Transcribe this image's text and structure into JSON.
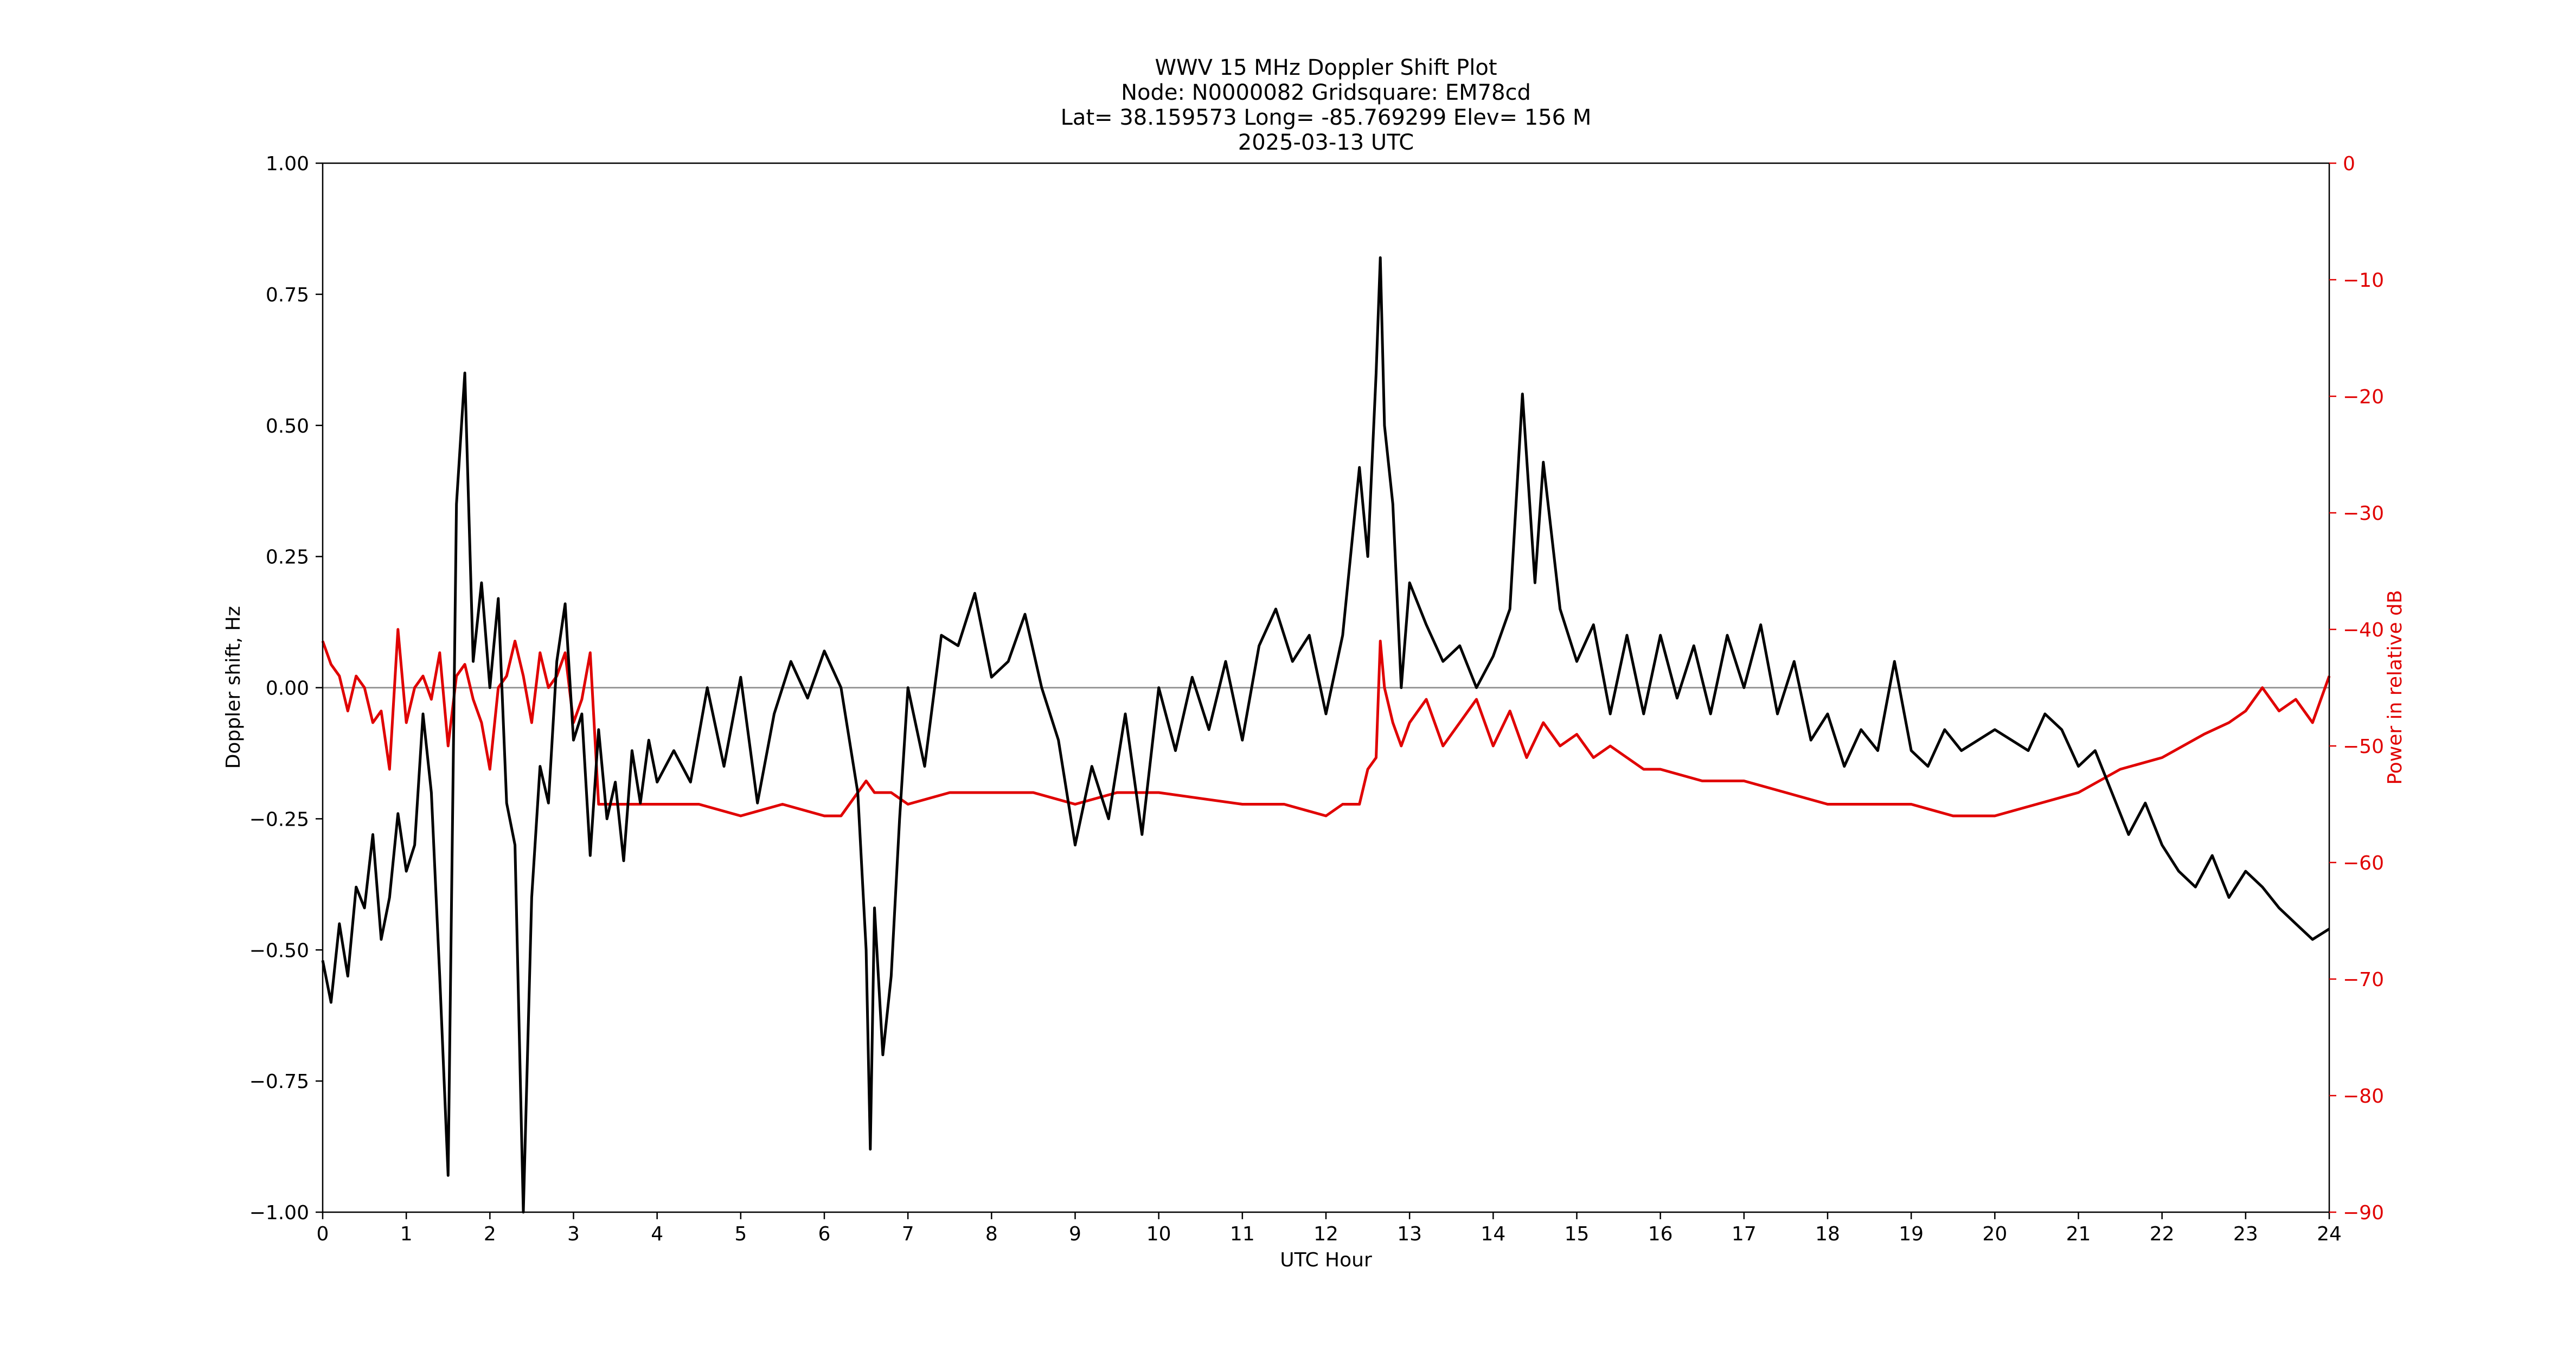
{
  "chart_data": {
    "type": "line",
    "title_lines": [
      "WWV 15 MHz Doppler Shift Plot",
      "Node:  N0000082     Gridsquare:  EM78cd",
      "Lat= 38.159573    Long= -85.769299    Elev= 156 M",
      "2025-03-13  UTC"
    ],
    "xlabel": "UTC Hour",
    "ylabel_left": "Doppler shift, Hz",
    "ylabel_right": "Power in relative dB",
    "xlim": [
      0,
      24
    ],
    "ylim_left": [
      -1.0,
      1.0
    ],
    "ylim_right": [
      -90,
      0
    ],
    "x_ticks": [
      "0",
      "1",
      "2",
      "3",
      "4",
      "5",
      "6",
      "7",
      "8",
      "9",
      "10",
      "11",
      "12",
      "13",
      "14",
      "15",
      "16",
      "17",
      "18",
      "19",
      "20",
      "21",
      "22",
      "23",
      "24"
    ],
    "y_left_ticks": [
      "1.00",
      "0.75",
      "0.50",
      "0.25",
      "0.00",
      "−0.25",
      "−0.50",
      "−0.75",
      "−1.00"
    ],
    "y_right_ticks": [
      "0",
      "−10",
      "−20",
      "−30",
      "−40",
      "−50",
      "−60",
      "−70",
      "−80",
      "−90"
    ],
    "zero_line": 0.0,
    "colors": {
      "doppler": "#000000",
      "power": "#e00000",
      "zero_line": "#999999",
      "axes": "#000000"
    },
    "series": [
      {
        "axis": "left",
        "color": "#000000",
        "x": [
          0,
          0.1,
          0.2,
          0.3,
          0.4,
          0.5,
          0.6,
          0.7,
          0.8,
          0.9,
          1.0,
          1.1,
          1.2,
          1.3,
          1.4,
          1.5,
          1.6,
          1.7,
          1.8,
          1.9,
          2.0,
          2.1,
          2.2,
          2.3,
          2.4,
          2.5,
          2.6,
          2.7,
          2.8,
          2.9,
          3.0,
          3.1,
          3.2,
          3.3,
          3.4,
          3.5,
          3.6,
          3.7,
          3.8,
          3.9,
          4.0,
          4.2,
          4.4,
          4.6,
          4.8,
          5.0,
          5.2,
          5.4,
          5.6,
          5.8,
          6.0,
          6.2,
          6.4,
          6.5,
          6.55,
          6.6,
          6.7,
          6.8,
          6.9,
          7.0,
          7.2,
          7.4,
          7.6,
          7.8,
          8.0,
          8.2,
          8.4,
          8.6,
          8.8,
          9.0,
          9.2,
          9.4,
          9.6,
          9.8,
          10.0,
          10.2,
          10.4,
          10.6,
          10.8,
          11.0,
          11.2,
          11.4,
          11.6,
          11.8,
          12.0,
          12.2,
          12.4,
          12.5,
          12.6,
          12.65,
          12.7,
          12.8,
          12.9,
          13.0,
          13.2,
          13.4,
          13.6,
          13.8,
          14.0,
          14.2,
          14.35,
          14.5,
          14.6,
          14.8,
          15.0,
          15.2,
          15.4,
          15.6,
          15.8,
          16.0,
          16.2,
          16.4,
          16.6,
          16.8,
          17.0,
          17.2,
          17.4,
          17.6,
          17.8,
          18.0,
          18.2,
          18.4,
          18.6,
          18.8,
          19.0,
          19.2,
          19.4,
          19.6,
          19.8,
          20.0,
          20.2,
          20.4,
          20.6,
          20.8,
          21.0,
          21.2,
          21.4,
          21.6,
          21.8,
          22.0,
          22.2,
          22.4,
          22.6,
          22.8,
          23.0,
          23.2,
          23.4,
          23.6,
          23.8,
          24.0
        ],
        "values": [
          -0.52,
          -0.6,
          -0.45,
          -0.55,
          -0.38,
          -0.42,
          -0.28,
          -0.48,
          -0.4,
          -0.24,
          -0.35,
          -0.3,
          -0.05,
          -0.2,
          -0.55,
          -0.93,
          0.35,
          0.6,
          0.05,
          0.2,
          0.0,
          0.17,
          -0.22,
          -0.3,
          -1.0,
          -0.4,
          -0.15,
          -0.22,
          0.05,
          0.16,
          -0.1,
          -0.05,
          -0.32,
          -0.08,
          -0.25,
          -0.18,
          -0.33,
          -0.12,
          -0.22,
          -0.1,
          -0.18,
          -0.12,
          -0.18,
          0.0,
          -0.15,
          0.02,
          -0.22,
          -0.05,
          0.05,
          -0.02,
          0.07,
          0.0,
          -0.2,
          -0.5,
          -0.88,
          -0.42,
          -0.7,
          -0.55,
          -0.25,
          0.0,
          -0.15,
          0.1,
          0.08,
          0.18,
          0.02,
          0.05,
          0.14,
          0.0,
          -0.1,
          -0.3,
          -0.15,
          -0.25,
          -0.05,
          -0.28,
          0.0,
          -0.12,
          0.02,
          -0.08,
          0.05,
          -0.1,
          0.08,
          0.15,
          0.05,
          0.1,
          -0.05,
          0.1,
          0.42,
          0.25,
          0.6,
          0.82,
          0.5,
          0.35,
          0.0,
          0.2,
          0.12,
          0.05,
          0.08,
          0.0,
          0.06,
          0.15,
          0.56,
          0.2,
          0.43,
          0.15,
          0.05,
          0.12,
          -0.05,
          0.1,
          -0.05,
          0.1,
          -0.02,
          0.08,
          -0.05,
          0.1,
          0.0,
          0.12,
          -0.05,
          0.05,
          -0.1,
          -0.05,
          -0.15,
          -0.08,
          -0.12,
          0.05,
          -0.12,
          -0.15,
          -0.08,
          -0.12,
          -0.1,
          -0.08,
          -0.1,
          -0.12,
          -0.05,
          -0.08,
          -0.15,
          -0.12,
          -0.2,
          -0.28,
          -0.22,
          -0.3,
          -0.35,
          -0.38,
          -0.32,
          -0.4,
          -0.35,
          -0.38,
          -0.42,
          -0.45,
          -0.48,
          -0.46
        ]
      },
      {
        "axis": "right",
        "color": "#e00000",
        "x": [
          0,
          0.1,
          0.2,
          0.3,
          0.4,
          0.5,
          0.6,
          0.7,
          0.8,
          0.9,
          1.0,
          1.1,
          1.2,
          1.3,
          1.4,
          1.5,
          1.6,
          1.7,
          1.8,
          1.9,
          2.0,
          2.1,
          2.2,
          2.3,
          2.4,
          2.5,
          2.6,
          2.7,
          2.8,
          2.9,
          3.0,
          3.1,
          3.2,
          3.3,
          3.5,
          4.0,
          4.5,
          5.0,
          5.5,
          6.0,
          6.2,
          6.4,
          6.5,
          6.6,
          6.8,
          7.0,
          7.5,
          8.0,
          8.5,
          9.0,
          9.5,
          10.0,
          10.5,
          11.0,
          11.5,
          12.0,
          12.2,
          12.4,
          12.5,
          12.6,
          12.65,
          12.7,
          12.8,
          12.9,
          13.0,
          13.2,
          13.4,
          13.6,
          13.8,
          14.0,
          14.2,
          14.4,
          14.6,
          14.8,
          15.0,
          15.2,
          15.4,
          15.6,
          15.8,
          16.0,
          16.5,
          17.0,
          17.5,
          18.0,
          18.5,
          19.0,
          19.5,
          20.0,
          20.5,
          21.0,
          21.5,
          22.0,
          22.5,
          22.8,
          23.0,
          23.2,
          23.4,
          23.6,
          23.8,
          24.0
        ],
        "values": [
          -41,
          -43,
          -44,
          -47,
          -44,
          -45,
          -48,
          -47,
          -52,
          -40,
          -48,
          -45,
          -44,
          -46,
          -42,
          -50,
          -44,
          -43,
          -46,
          -48,
          -52,
          -45,
          -44,
          -41,
          -44,
          -48,
          -42,
          -45,
          -44,
          -42,
          -48,
          -46,
          -42,
          -55,
          -55,
          -55,
          -55,
          -56,
          -55,
          -56,
          -56,
          -54,
          -53,
          -54,
          -54,
          -55,
          -54,
          -54,
          -54,
          -55,
          -54,
          -54,
          -54.5,
          -55,
          -55,
          -56,
          -55,
          -55,
          -52,
          -51,
          -41,
          -45,
          -48,
          -50,
          -48,
          -46,
          -50,
          -48,
          -46,
          -50,
          -47,
          -51,
          -48,
          -50,
          -49,
          -51,
          -50,
          -51,
          -52,
          -52,
          -53,
          -53,
          -54,
          -55,
          -55,
          -55,
          -56,
          -56,
          -55,
          -54,
          -52,
          -51,
          -49,
          -48,
          -47,
          -45,
          -47,
          -46,
          -48,
          -44
        ]
      }
    ]
  }
}
